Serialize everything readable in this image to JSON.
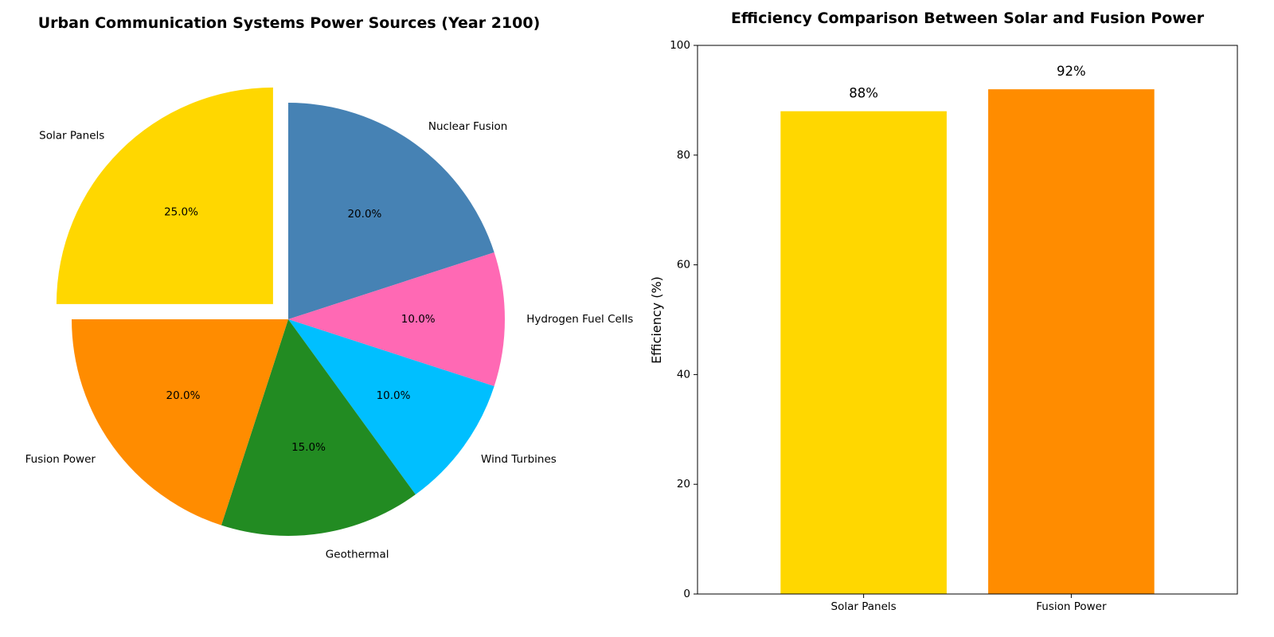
{
  "chart_data": [
    {
      "type": "pie",
      "title": "Urban Communication Systems Power Sources (Year 2100)",
      "start_angle_deg": 90,
      "direction": "clockwise",
      "slices": [
        {
          "label": "Nuclear Fusion",
          "value": 20,
          "pct_label": "20.0%",
          "color": "#4682B4",
          "explode": false
        },
        {
          "label": "Hydrogen Fuel Cells",
          "value": 10,
          "pct_label": "10.0%",
          "color": "#FF69B4",
          "explode": false
        },
        {
          "label": "Wind Turbines",
          "value": 10,
          "pct_label": "10.0%",
          "color": "#00BFFF",
          "explode": false
        },
        {
          "label": "Geothermal",
          "value": 15,
          "pct_label": "15.0%",
          "color": "#228B22",
          "explode": false
        },
        {
          "label": "Fusion Power",
          "value": 20,
          "pct_label": "20.0%",
          "color": "#FF8C00",
          "explode": false
        },
        {
          "label": "Solar Panels",
          "value": 25,
          "pct_label": "25.0%",
          "color": "#FFD700",
          "explode": true
        }
      ]
    },
    {
      "type": "bar",
      "title": "Efficiency Comparison Between Solar and Fusion Power",
      "categories": [
        "Solar Panels",
        "Fusion Power"
      ],
      "values": [
        88,
        92
      ],
      "value_labels": [
        "88%",
        "92%"
      ],
      "colors": [
        "#FFD700",
        "#FF8C00"
      ],
      "xlabel": "",
      "ylabel": "Efficiency (%)",
      "ylim": [
        0,
        100
      ],
      "yticks": [
        0,
        20,
        40,
        60,
        80,
        100
      ],
      "grid": false
    }
  ]
}
